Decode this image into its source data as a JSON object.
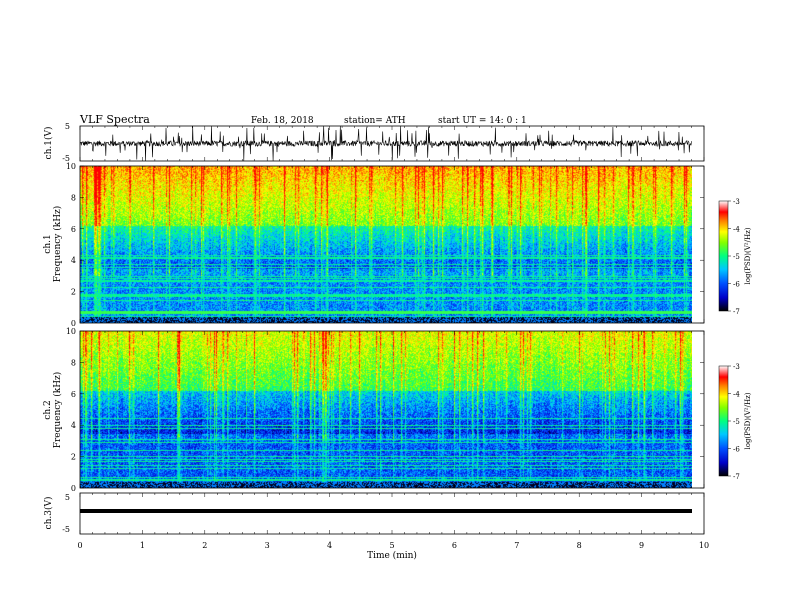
{
  "header": {
    "title": "VLF Spectra",
    "date": "Feb. 18, 2018",
    "station": "station= ATH",
    "start_time": "start UT =  14: 0 : 1"
  },
  "chart_data": [
    {
      "type": "line",
      "ylabel": "ch.1(V)",
      "ylim": [
        -5,
        5
      ],
      "yticks": [
        "5",
        "-5"
      ],
      "xlim": [
        0,
        10
      ],
      "trace_color": "#000000"
    },
    {
      "type": "heatmap",
      "ylabel_line1": "ch.1",
      "ylabel_line2": "Frequency (kHz)",
      "ylim": [
        0,
        10
      ],
      "yticks": [
        "0",
        "2",
        "4",
        "6",
        "8",
        "10"
      ],
      "xlim": [
        0,
        9.8
      ],
      "colorbar": {
        "label": "log(PSD)(V²/Hz)",
        "range": [
          -7,
          -3
        ],
        "ticks": [
          "-3",
          "-4",
          "-5",
          "-6",
          "-7"
        ]
      }
    },
    {
      "type": "heatmap",
      "ylabel_line1": "ch.2",
      "ylabel_line2": "Frequency (kHz)",
      "ylim": [
        0,
        10
      ],
      "yticks": [
        "0",
        "2",
        "4",
        "6",
        "8",
        "10"
      ],
      "xlim": [
        0,
        9.8
      ],
      "colorbar": {
        "label": "log(PSD)(V²/Hz)",
        "range": [
          -7,
          -3
        ],
        "ticks": [
          "-3",
          "-4",
          "-5",
          "-6",
          "-7"
        ]
      }
    },
    {
      "type": "line",
      "ylabel": "ch.3(V)",
      "ylim": [
        -5,
        5
      ],
      "yticks": [
        "5",
        "-5"
      ],
      "xlim": [
        0,
        10
      ],
      "trace_color": "#000000"
    }
  ],
  "xaxis": {
    "label": "Time (min)",
    "ticks": [
      "0",
      "1",
      "2",
      "3",
      "4",
      "5",
      "6",
      "7",
      "8",
      "9",
      "10"
    ]
  },
  "colormap": [
    "#000000",
    "#0000c8",
    "#0050ff",
    "#00c8ff",
    "#00ff80",
    "#80ff00",
    "#ffff00",
    "#ff8000",
    "#ff0000",
    "#ffffff"
  ]
}
